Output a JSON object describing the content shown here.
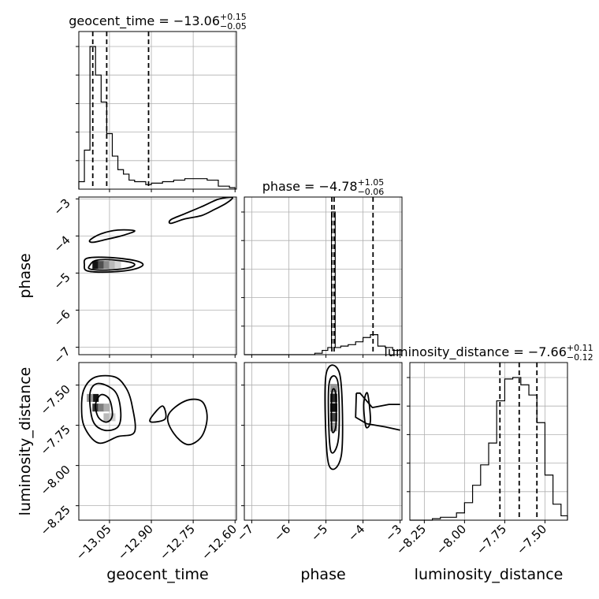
{
  "chart_data": {
    "type": "corner",
    "parameters": [
      "geocent_time",
      "phase",
      "luminosity_distance"
    ],
    "axis_ranges": {
      "geocent_time": [
        -13.16,
        -12.595
      ],
      "phase": [
        -7.2,
        -2.95
      ],
      "luminosity_distance": [
        -8.34,
        -7.36
      ]
    },
    "ticks": {
      "geocent_time": [
        -13.05,
        -12.9,
        -12.75,
        -12.6
      ],
      "phase": [
        -7,
        -6,
        -5,
        -4,
        -3
      ],
      "luminosity_distance": [
        -8.25,
        -8.0,
        -7.75,
        -7.5
      ]
    },
    "tick_labels": {
      "geocent_time": [
        "−13.05",
        "−12.90",
        "−12.75",
        "−12.60"
      ],
      "phase": [
        "−7",
        "−6",
        "−5",
        "−4",
        "−3"
      ],
      "luminosity_distance": [
        "−8.25",
        "−8.00",
        "−7.75",
        "−7.50"
      ]
    },
    "grid": true,
    "titles": [
      {
        "param": "geocent_time",
        "prefix": "geocent_time = −13.06",
        "sup": "+0.15",
        "sub": "−0.05"
      },
      {
        "param": "phase",
        "prefix": "phase = −4.78",
        "sup": "+1.05",
        "sub": "−0.06"
      },
      {
        "param": "luminosity_distance",
        "prefix": "luminosity_distance = −7.66",
        "sup": "+0.11",
        "sub": "−0.12"
      }
    ],
    "histograms": {
      "geocent_time": {
        "edges": [
          -13.16,
          -13.14,
          -13.12,
          -13.1,
          -13.08,
          -13.06,
          -13.04,
          -13.02,
          -13.0,
          -12.98,
          -12.96,
          -12.94,
          -12.92,
          -12.9,
          -12.86,
          -12.82,
          -12.78,
          -12.74,
          -12.7,
          -12.66,
          -12.62,
          -12.6
        ],
        "counts": [
          0.05,
          0.26,
          0.95,
          0.76,
          0.58,
          0.37,
          0.22,
          0.13,
          0.1,
          0.06,
          0.05,
          0.05,
          0.03,
          0.04,
          0.05,
          0.06,
          0.07,
          0.07,
          0.06,
          0.02,
          0.01
        ],
        "quantiles": [
          -13.11,
          -13.06,
          -12.91
        ]
      },
      "phase": {
        "edges": [
          -7.2,
          -5.3,
          -5.1,
          -4.95,
          -4.85,
          -4.75,
          -4.6,
          -4.4,
          -4.2,
          -4.0,
          -3.8,
          -3.6,
          -3.4,
          -3.2,
          -3.0
        ],
        "counts": [
          0.0,
          0.01,
          0.03,
          0.05,
          1.0,
          0.05,
          0.06,
          0.07,
          0.09,
          0.12,
          0.14,
          0.06,
          0.05,
          0.03
        ],
        "quantiles": [
          -4.84,
          -4.78,
          -3.73
        ]
      },
      "luminosity_distance": {
        "edges": [
          -8.34,
          -8.3,
          -8.25,
          -8.2,
          -8.15,
          -8.1,
          -8.05,
          -8.0,
          -7.95,
          -7.9,
          -7.85,
          -7.8,
          -7.75,
          -7.7,
          -7.65,
          -7.6,
          -7.55,
          -7.5,
          -7.45,
          -7.4,
          -7.36
        ],
        "counts": [
          0.0,
          0.0,
          0.0,
          0.01,
          0.02,
          0.02,
          0.05,
          0.12,
          0.24,
          0.38,
          0.53,
          0.82,
          0.97,
          0.98,
          0.93,
          0.86,
          0.67,
          0.31,
          0.11,
          0.03
        ],
        "quantiles": [
          -7.78,
          -7.66,
          -7.55
        ]
      }
    },
    "pairs": [
      {
        "x": "geocent_time",
        "y": "phase",
        "contours": [
          [
            [
              -13.12,
              -4.78
            ],
            [
              -13.1,
              -4.66
            ],
            [
              -13.05,
              -4.64
            ],
            [
              -12.98,
              -4.7
            ],
            [
              -12.96,
              -4.78
            ],
            [
              -12.99,
              -4.87
            ],
            [
              -13.06,
              -4.92
            ],
            [
              -13.12,
              -4.89
            ]
          ],
          [
            [
              -13.14,
              -4.78
            ],
            [
              -13.13,
              -4.6
            ],
            [
              -13.05,
              -4.58
            ],
            [
              -12.96,
              -4.66
            ],
            [
              -12.93,
              -4.78
            ],
            [
              -12.97,
              -4.91
            ],
            [
              -13.06,
              -4.97
            ],
            [
              -13.13,
              -4.94
            ]
          ],
          [
            [
              -13.12,
              -4.11
            ],
            [
              -13.08,
              -3.94
            ],
            [
              -13.02,
              -3.84
            ],
            [
              -12.96,
              -3.86
            ],
            [
              -13.0,
              -3.98
            ],
            [
              -13.06,
              -4.09
            ],
            [
              -13.11,
              -4.17
            ]
          ],
          [
            [
              -12.83,
              -3.66
            ],
            [
              -12.78,
              -3.54
            ],
            [
              -12.72,
              -3.45
            ],
            [
              -12.67,
              -3.27
            ],
            [
              -12.63,
              -3.11
            ],
            [
              -12.61,
              -2.96
            ],
            [
              -12.66,
              -3.01
            ],
            [
              -12.72,
              -3.21
            ],
            [
              -12.78,
              -3.4
            ],
            [
              -12.83,
              -3.56
            ]
          ]
        ],
        "density_cells": [
          {
            "x": -13.1,
            "y": -4.78,
            "level": 1.0
          },
          {
            "x": -13.08,
            "y": -4.78,
            "level": 0.75
          },
          {
            "x": -13.06,
            "y": -4.78,
            "level": 0.5
          },
          {
            "x": -13.04,
            "y": -4.78,
            "level": 0.3
          },
          {
            "x": -13.02,
            "y": -4.78,
            "level": 0.18
          }
        ]
      },
      {
        "x": "geocent_time",
        "y": "luminosity_distance",
        "contours": [
          [
            [
              -13.1,
              -7.62
            ],
            [
              -13.08,
              -7.56
            ],
            [
              -13.05,
              -7.59
            ],
            [
              -13.04,
              -7.69
            ],
            [
              -13.06,
              -7.73
            ],
            [
              -13.09,
              -7.7
            ]
          ],
          [
            [
              -13.12,
              -7.55
            ],
            [
              -13.09,
              -7.49
            ],
            [
              -13.03,
              -7.54
            ],
            [
              -13.01,
              -7.66
            ],
            [
              -13.02,
              -7.76
            ],
            [
              -13.07,
              -7.78
            ],
            [
              -13.11,
              -7.72
            ]
          ],
          [
            [
              -13.14,
              -7.52
            ],
            [
              -13.1,
              -7.45
            ],
            [
              -13.03,
              -7.45
            ],
            [
              -12.99,
              -7.52
            ],
            [
              -12.97,
              -7.62
            ],
            [
              -12.96,
              -7.79
            ],
            [
              -13.02,
              -7.82
            ],
            [
              -13.09,
              -7.86
            ],
            [
              -13.14,
              -7.76
            ],
            [
              -13.15,
              -7.63
            ]
          ],
          [
            [
              -12.9,
              -7.7
            ],
            [
              -12.86,
              -7.63
            ],
            [
              -12.85,
              -7.71
            ],
            [
              -12.9,
              -7.73
            ]
          ],
          [
            [
              -12.84,
              -7.69
            ],
            [
              -12.78,
              -7.6
            ],
            [
              -12.72,
              -7.6
            ],
            [
              -12.7,
              -7.7
            ],
            [
              -12.72,
              -7.82
            ],
            [
              -12.77,
              -7.87
            ],
            [
              -12.82,
              -7.8
            ]
          ]
        ],
        "density_cells": [
          {
            "x": -13.1,
            "y": -7.58,
            "level": 1.0
          },
          {
            "x": -13.1,
            "y": -7.64,
            "level": 0.85
          },
          {
            "x": -13.08,
            "y": -7.64,
            "level": 0.55
          },
          {
            "x": -13.06,
            "y": -7.64,
            "level": 0.35
          },
          {
            "x": -13.06,
            "y": -7.7,
            "level": 0.3
          },
          {
            "x": -13.04,
            "y": -7.7,
            "level": 0.2
          },
          {
            "x": -13.12,
            "y": -7.58,
            "level": 0.45
          }
        ]
      },
      {
        "x": "phase",
        "y": "luminosity_distance",
        "contours": [
          [
            [
              -4.84,
              -7.55
            ],
            [
              -4.74,
              -7.55
            ],
            [
              -4.73,
              -7.75
            ],
            [
              -4.84,
              -7.78
            ]
          ],
          [
            [
              -4.92,
              -7.5
            ],
            [
              -4.68,
              -7.48
            ],
            [
              -4.66,
              -7.83
            ],
            [
              -4.88,
              -7.9
            ]
          ],
          [
            [
              -5.0,
              -7.44
            ],
            [
              -4.62,
              -7.44
            ],
            [
              -4.58,
              -7.93
            ],
            [
              -4.94,
              -7.98
            ]
          ],
          [
            [
              -4.18,
              -7.55
            ],
            [
              -4.08,
              -7.55
            ],
            [
              -3.75,
              -7.64
            ],
            [
              -3.3,
              -7.62
            ],
            [
              -3.0,
              -7.62
            ]
          ],
          [
            [
              -4.18,
              -7.55
            ],
            [
              -4.2,
              -7.7
            ],
            [
              -3.9,
              -7.74
            ],
            [
              -3.4,
              -7.76
            ],
            [
              -3.0,
              -7.78
            ]
          ],
          [
            [
              -3.98,
              -7.62
            ],
            [
              -3.88,
              -7.55
            ],
            [
              -3.8,
              -7.72
            ],
            [
              -3.92,
              -7.76
            ]
          ]
        ],
        "density_cells": [
          {
            "x": -4.79,
            "y": -7.58,
            "level": 0.9
          },
          {
            "x": -4.79,
            "y": -7.64,
            "level": 1.0
          },
          {
            "x": -4.79,
            "y": -7.7,
            "level": 0.8
          },
          {
            "x": -4.79,
            "y": -7.52,
            "level": 0.45
          },
          {
            "x": -4.79,
            "y": -7.76,
            "level": 0.4
          }
        ]
      }
    ]
  }
}
